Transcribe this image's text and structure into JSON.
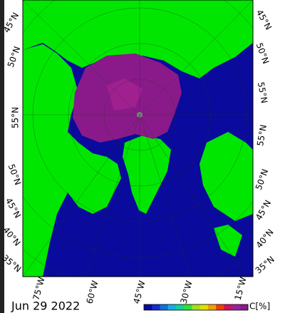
{
  "map": {
    "lat_labels_left": [
      "45°N",
      "50°N",
      "55°N",
      "50°N",
      "45°N",
      "40°N",
      "35°N"
    ],
    "lat_labels_right": [
      "45°N",
      "50°N",
      "55°N",
      "55°N",
      "50°N",
      "45°N",
      "40°N",
      "35°N"
    ],
    "lon_labels": [
      "75°W",
      "60°W",
      "45°W",
      "30°W",
      "15°W"
    ]
  },
  "date": "Jun 29 2022",
  "colorbar": {
    "label": "C[%]"
  }
}
